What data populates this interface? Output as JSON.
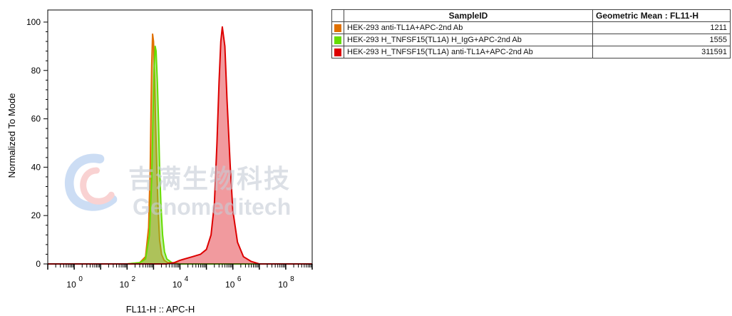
{
  "chart_data": {
    "type": "area",
    "xlabel": "FL11-H :: APC-H",
    "ylabel": "Normalized To Mode",
    "xscale": "log",
    "xlim": [
      0.1,
      1000000000
    ],
    "ylim": [
      0,
      105
    ],
    "yticks": [
      0,
      20,
      40,
      60,
      80,
      100
    ],
    "xtick_base": "10",
    "xtick_exponents": [
      "0",
      "2",
      "4",
      "6",
      "8"
    ],
    "grid": false,
    "legend": "table-right",
    "series": [
      {
        "name": "HEK-293 anti-TL1A+APC-2nd Ab",
        "color": "#e07000",
        "fill": "rgba(200,120,30,0.55)",
        "x": [
          0.1,
          100,
          300,
          500,
          650,
          750,
          800,
          850,
          920,
          1000,
          1100,
          1200,
          1350,
          1500,
          1700,
          2000,
          2500,
          3500,
          10000,
          1000000000
        ],
        "y": [
          0,
          0,
          0.5,
          3,
          15,
          40,
          62,
          82,
          95,
          92,
          78,
          58,
          38,
          22,
          10,
          4,
          1.5,
          0.5,
          0,
          0
        ]
      },
      {
        "name": "HEK-293 H_TNFSF15(TL1A) H_IgG+APC-2nd Ab",
        "color": "#66dd00",
        "fill": "rgba(110,210,40,0.45)",
        "x": [
          0.1,
          100,
          300,
          500,
          700,
          850,
          950,
          1050,
          1150,
          1250,
          1400,
          1550,
          1700,
          1900,
          2200,
          2600,
          3200,
          5000,
          10000,
          1000000000
        ],
        "y": [
          0,
          0,
          0.5,
          2,
          12,
          35,
          60,
          80,
          90,
          88,
          75,
          58,
          40,
          25,
          12,
          5,
          2,
          0.5,
          0,
          0
        ]
      },
      {
        "name": "HEK-293 H_TNFSF15(TL1A) anti-TL1A+APC-2nd Ab",
        "color": "#dd0000",
        "fill": "rgba(225,30,40,0.45)",
        "x": [
          0.1,
          3000,
          6000,
          10000,
          30000,
          60000,
          100000,
          150000,
          200000,
          250000,
          300000,
          350000,
          400000,
          500000,
          600000,
          800000,
          1000000,
          1500000,
          2500000,
          5000000,
          10000000,
          1000000000
        ],
        "y": [
          0,
          0,
          0.5,
          1.5,
          3,
          4,
          6,
          12,
          25,
          50,
          75,
          92,
          98,
          90,
          68,
          40,
          22,
          9,
          3,
          1,
          0,
          0
        ]
      }
    ]
  },
  "legend_table": {
    "headers": [
      "SampleID",
      "Geometric Mean : FL11-H"
    ],
    "rows": [
      {
        "sample": "HEK-293 anti-TL1A+APC-2nd Ab",
        "value": "1211",
        "color": "#e07000"
      },
      {
        "sample": "HEK-293 H_TNFSF15(TL1A) H_IgG+APC-2nd Ab",
        "value": "1555",
        "color": "#66dd00"
      },
      {
        "sample": "HEK-293 H_TNFSF15(TL1A) anti-TL1A+APC-2nd Ab",
        "value": "311591",
        "color": "#dd0000"
      }
    ]
  },
  "watermark": {
    "cn": "吉满生物科技",
    "en": "Genomeditech"
  }
}
